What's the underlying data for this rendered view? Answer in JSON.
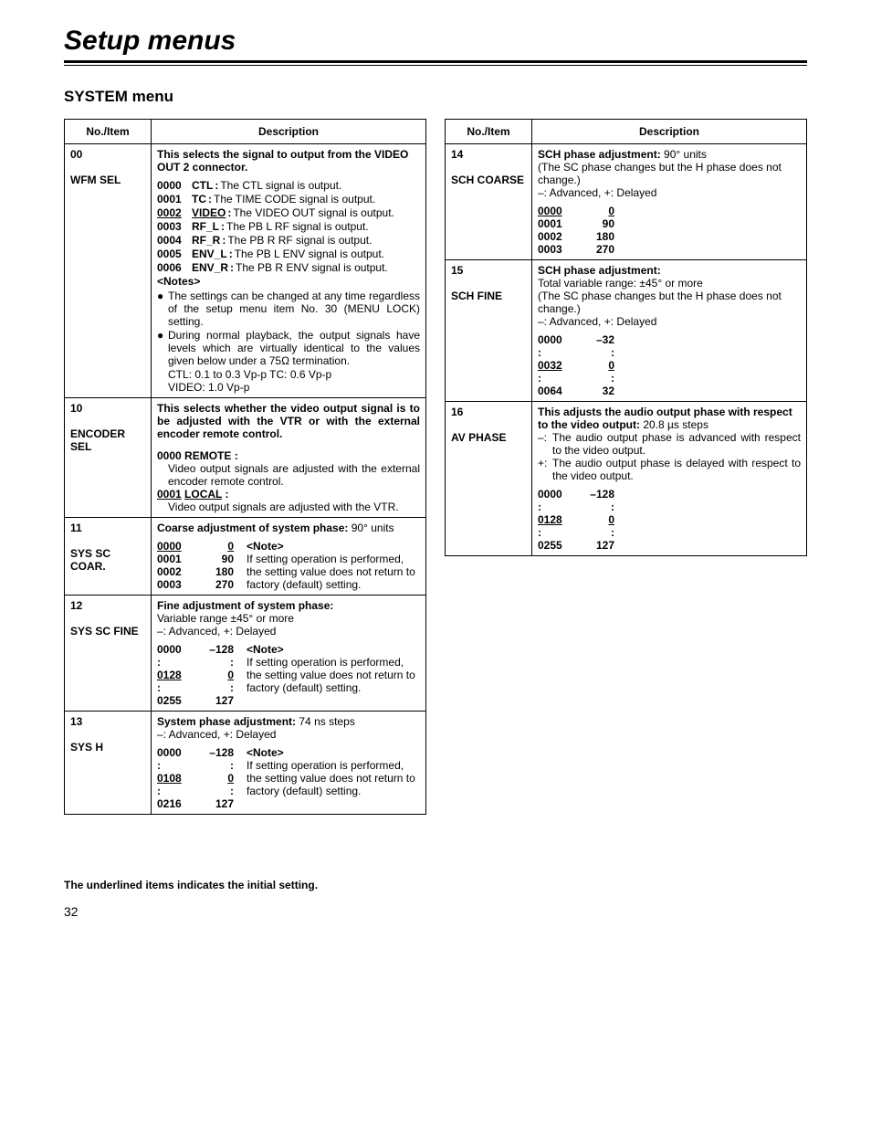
{
  "title": "Setup menus",
  "section": "SYSTEM menu",
  "headers": {
    "col1": "No./Item",
    "col2": "Description"
  },
  "footer_note": "The underlined items indicates the initial setting.",
  "page_number": "32",
  "note_text": {
    "heading": "<Note>",
    "body": "If setting operation is performed, the setting value does not return to factory (default) setting."
  },
  "left": [
    {
      "no": "00",
      "item": "WFM SEL",
      "title": "This selects the signal to output from the VIDEO OUT 2 connector.",
      "signals": [
        {
          "code": "0000",
          "label": "CTL",
          "text": "The CTL signal is output.",
          "u": false
        },
        {
          "code": "0001",
          "label": "TC",
          "text": "The TIME CODE signal is output.",
          "u": false
        },
        {
          "code": "0002",
          "label": "VIDEO",
          "text": "The VIDEO OUT signal is output.",
          "u": true
        },
        {
          "code": "0003",
          "label": "RF_L",
          "text": "The PB L RF signal is output.",
          "u": false
        },
        {
          "code": "0004",
          "label": "RF_R",
          "text": "The PB R RF signal is output.",
          "u": false
        },
        {
          "code": "0005",
          "label": "ENV_L",
          "text": "The PB L ENV signal is output.",
          "u": false
        },
        {
          "code": "0006",
          "label": "ENV_R",
          "text": "The PB R ENV signal is output.",
          "u": false
        }
      ],
      "notes_heading": "<Notes>",
      "notes": [
        "The settings can be changed at any time regardless of the setup menu item No. 30 (MENU LOCK) setting.",
        "During normal playback, the output signals have levels which are virtually identical to the values given below under a 75Ω termination."
      ],
      "levels": "CTL: 0.1 to 0.3 Vp-p          TC: 0.6 Vp-p",
      "levels2": "VIDEO: 1.0 Vp-p"
    },
    {
      "no": "10",
      "item": "ENCODER SEL",
      "title": "This selects whether the video output signal is to be adjusted with the VTR or with the external encoder remote control.",
      "options": [
        {
          "code": "0000",
          "label": "REMOTE",
          "u": false,
          "text": "Video output signals are adjusted with the external encoder remote control."
        },
        {
          "code": "0001",
          "label": "LOCAL",
          "u": true,
          "text": "Video output signals are adjusted with the VTR."
        }
      ]
    },
    {
      "no": "11",
      "item": "SYS SC COAR.",
      "title_bold": "Coarse adjustment of system phase:",
      "title_rest": " 90° units",
      "values": [
        {
          "a": "0000",
          "b": "0",
          "u": true
        },
        {
          "a": "0001",
          "b": "90",
          "u": false
        },
        {
          "a": "0002",
          "b": "180",
          "u": false
        },
        {
          "a": "0003",
          "b": "270",
          "u": false
        }
      ],
      "has_note": true
    },
    {
      "no": "12",
      "item": "SYS SC FINE",
      "title_bold": "Fine adjustment of system phase:",
      "sub1": "Variable range ±45° or more",
      "sub2": "–: Advanced, +: Delayed",
      "values": [
        {
          "a": "0000",
          "b": "–128",
          "u": false
        },
        {
          "a": ":",
          "b": ":",
          "u": false
        },
        {
          "a": "0128",
          "b": "0",
          "u": true
        },
        {
          "a": ":",
          "b": ":",
          "u": false
        },
        {
          "a": "0255",
          "b": "127",
          "u": false
        }
      ],
      "has_note": true
    },
    {
      "no": "13",
      "item": "SYS H",
      "title_bold": "System phase adjustment:",
      "title_rest": " 74 ns steps",
      "sub2": "–: Advanced, +: Delayed",
      "values": [
        {
          "a": "0000",
          "b": "–128",
          "u": false
        },
        {
          "a": ":",
          "b": ":",
          "u": false
        },
        {
          "a": "0108",
          "b": "0",
          "u": true
        },
        {
          "a": ":",
          "b": ":",
          "u": false
        },
        {
          "a": "0216",
          "b": "127",
          "u": false
        }
      ],
      "has_note": true
    }
  ],
  "right": [
    {
      "no": "14",
      "item": "SCH COARSE",
      "title_bold": "SCH phase adjustment:",
      "title_rest": " 90° units",
      "sub1": "(The SC phase changes but the H phase does not change.)",
      "sub2": "–: Advanced, +: Delayed",
      "values": [
        {
          "a": "0000",
          "b": "0",
          "u": true
        },
        {
          "a": "0001",
          "b": "90",
          "u": false
        },
        {
          "a": "0002",
          "b": "180",
          "u": false
        },
        {
          "a": "0003",
          "b": "270",
          "u": false
        }
      ]
    },
    {
      "no": "15",
      "item": "SCH FINE",
      "title_bold": "SCH phase adjustment:",
      "sub0": "Total variable range: ±45° or more",
      "sub1": "(The SC phase changes but the H phase does not change.)",
      "sub2": "–: Advanced, +: Delayed",
      "values": [
        {
          "a": "0000",
          "b": "–32",
          "u": false
        },
        {
          "a": ":",
          "b": ":",
          "u": false
        },
        {
          "a": "0032",
          "b": "0",
          "u": true
        },
        {
          "a": ":",
          "b": ":",
          "u": false
        },
        {
          "a": "0064",
          "b": "32",
          "u": false
        }
      ]
    },
    {
      "no": "16",
      "item": "AV PHASE",
      "title_bold": "This adjusts the audio output phase with respect to the video output:",
      "title_rest": " 20.8 µs steps",
      "lines": [
        {
          "pre": "–:",
          "text": "The audio output phase is advanced with respect to the video output."
        },
        {
          "pre": "+:",
          "text": "The audio output phase is delayed with respect to the video output."
        }
      ],
      "values": [
        {
          "a": "0000",
          "b": "–128",
          "u": false
        },
        {
          "a": ":",
          "b": ":",
          "u": false
        },
        {
          "a": "0128",
          "b": "0",
          "u": true
        },
        {
          "a": ":",
          "b": ":",
          "u": false
        },
        {
          "a": "0255",
          "b": "127",
          "u": false
        }
      ]
    }
  ]
}
